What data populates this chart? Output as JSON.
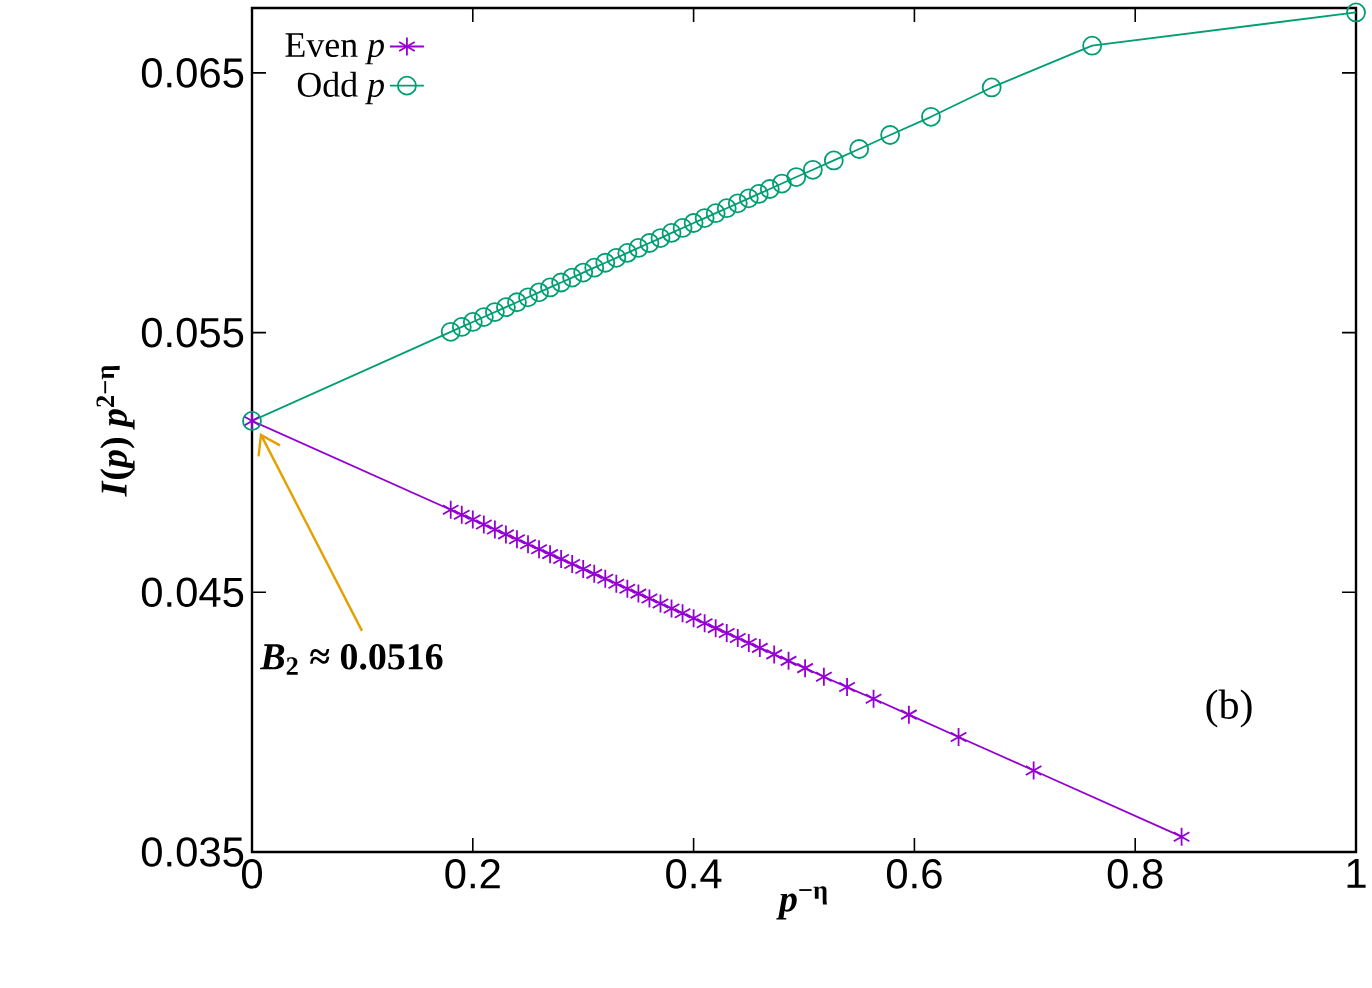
{
  "chart_data": {
    "type": "line",
    "xlabel": "*p*$^{−η}$",
    "ylabel": "*I*(*p*) *p*$^{2−η}$",
    "xlim": [
      0,
      1
    ],
    "ylim": [
      0.035,
      0.0675
    ],
    "xticks": [
      0,
      0.2,
      0.4,
      0.6,
      0.8,
      1
    ],
    "yticks": [
      0.035,
      0.045,
      0.055,
      0.065
    ],
    "legend": "top left",
    "grid": false,
    "series": [
      {
        "name": "Even *p*",
        "color": "#9400d3",
        "marker": "cross",
        "line_style": "solid",
        "x": [
          0,
          0.18,
          0.19,
          0.2,
          0.21,
          0.22,
          0.23,
          0.24,
          0.25,
          0.26,
          0.27,
          0.28,
          0.29,
          0.3,
          0.31,
          0.32,
          0.33,
          0.34,
          0.35,
          0.36,
          0.37,
          0.38,
          0.39,
          0.4,
          0.41,
          0.42,
          0.43,
          0.44,
          0.45,
          0.46,
          0.473,
          0.486,
          0.501,
          0.518,
          0.539,
          0.563,
          0.595,
          0.64,
          0.708,
          0.842
        ],
        "values": [
          0.0516,
          0.04818,
          0.04799,
          0.0478,
          0.04761,
          0.04742,
          0.04723,
          0.04704,
          0.04685,
          0.04666,
          0.04647,
          0.04628,
          0.04609,
          0.0459,
          0.04571,
          0.04552,
          0.04533,
          0.04514,
          0.04495,
          0.04476,
          0.04457,
          0.04438,
          0.04419,
          0.044,
          0.04381,
          0.04362,
          0.04343,
          0.04324,
          0.04305,
          0.04286,
          0.04261,
          0.04236,
          0.04208,
          0.04175,
          0.04135,
          0.0409,
          0.04029,
          0.03943,
          0.03814,
          0.03559
        ]
      },
      {
        "name": "Odd *p*",
        "color": "#009e73",
        "marker": "circle",
        "line_style": "solid",
        "x": [
          0,
          0.18,
          0.19,
          0.2,
          0.21,
          0.22,
          0.23,
          0.24,
          0.25,
          0.26,
          0.27,
          0.28,
          0.29,
          0.3,
          0.31,
          0.32,
          0.33,
          0.34,
          0.35,
          0.36,
          0.37,
          0.38,
          0.39,
          0.4,
          0.41,
          0.42,
          0.43,
          0.44,
          0.45,
          0.459,
          0.469,
          0.48,
          0.493,
          0.508,
          0.527,
          0.55,
          0.578,
          0.615,
          0.67,
          0.761,
          1.0
        ],
        "values": [
          0.0516,
          0.05503,
          0.05522,
          0.05541,
          0.0556,
          0.05579,
          0.05598,
          0.05617,
          0.05636,
          0.05655,
          0.05674,
          0.05693,
          0.05712,
          0.05731,
          0.0575,
          0.05769,
          0.05788,
          0.05807,
          0.05826,
          0.05845,
          0.05864,
          0.05884,
          0.05903,
          0.05922,
          0.05941,
          0.0596,
          0.05979,
          0.05998,
          0.06017,
          0.06034,
          0.06053,
          0.06074,
          0.06099,
          0.06127,
          0.06163,
          0.06207,
          0.06261,
          0.06331,
          0.06444,
          0.06605,
          0.06733
        ]
      }
    ],
    "annotations": [
      {
        "text": "*B*$_{2}$ ≈ 0.0516",
        "x": 0,
        "y": 0.0516
      },
      "(b)"
    ]
  }
}
